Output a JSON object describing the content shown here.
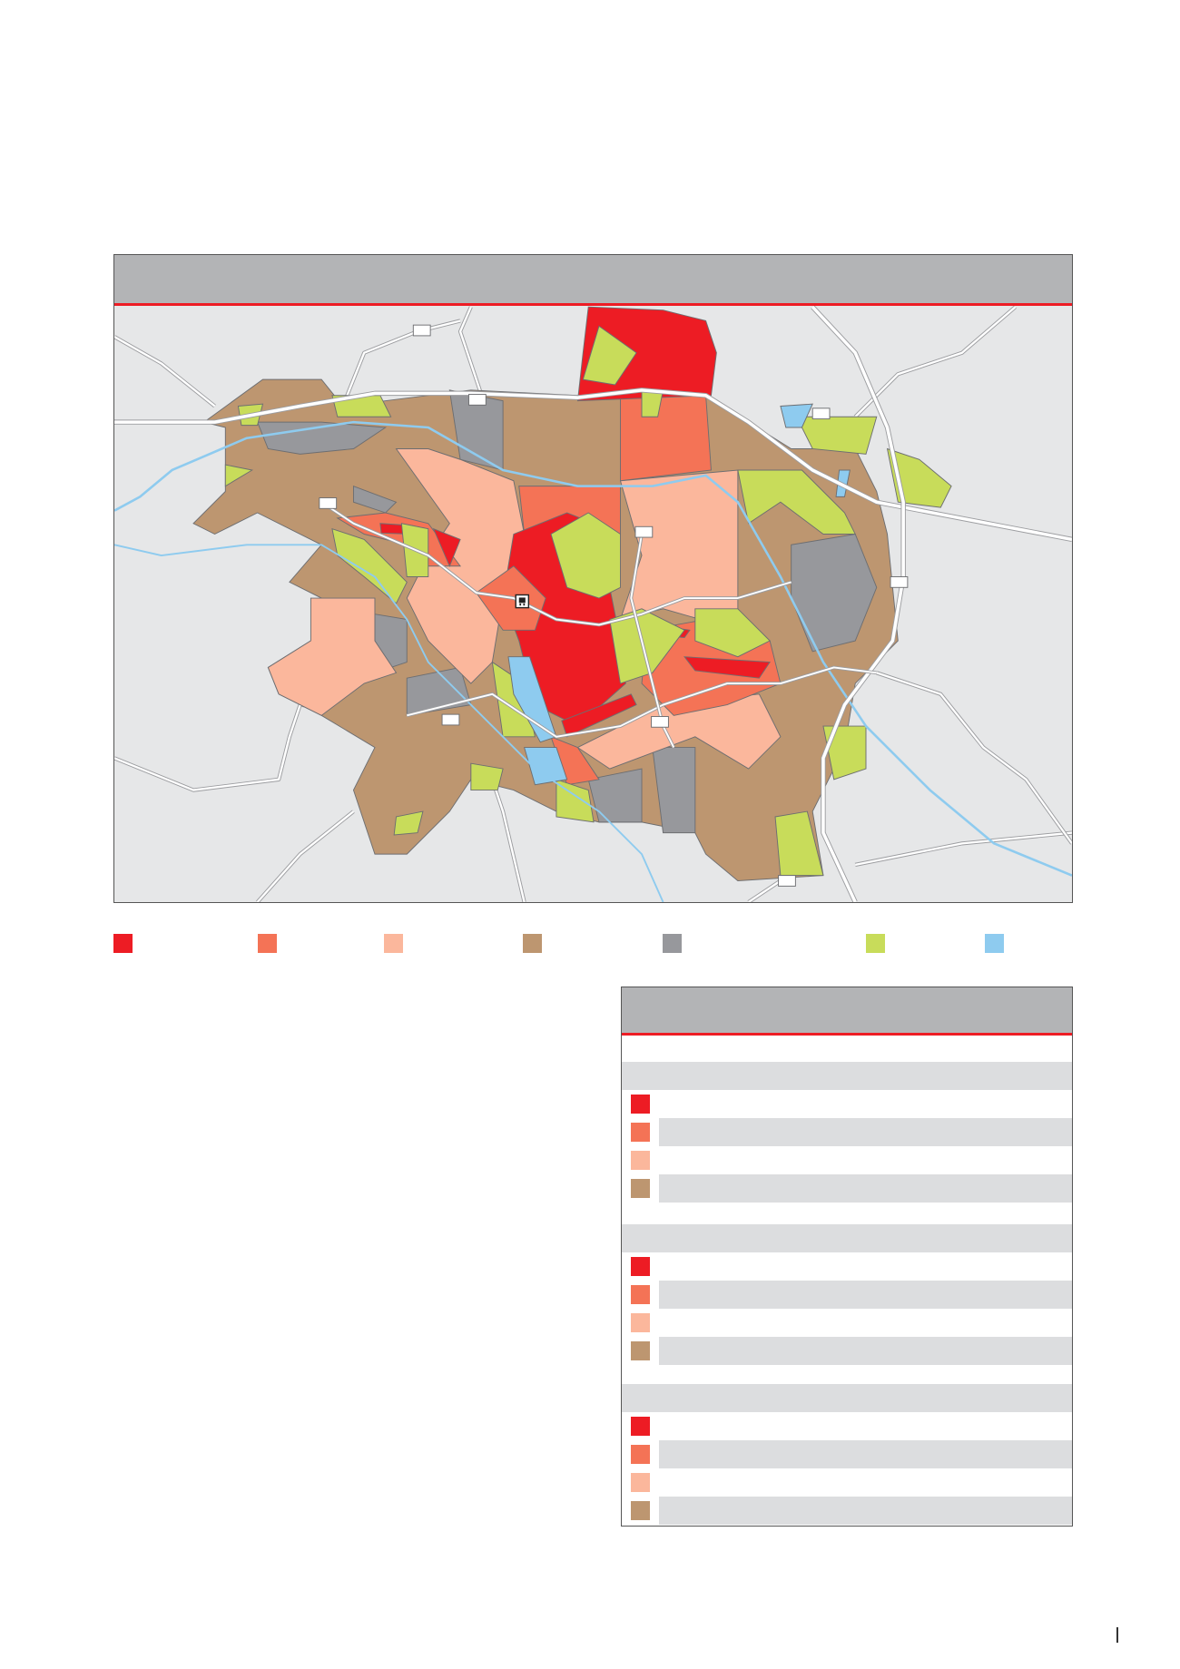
{
  "colors": {
    "map_background": "#e6e7e8",
    "header_gray": "#b3b4b6",
    "accent_red": "#ed1c24",
    "row_stripe": "#dcdddf",
    "water": "#8ecbef",
    "road": "#ffffff"
  },
  "map": {
    "station_icon": "train-station-icon",
    "road_shield_icon": "road-number-shield-icon"
  },
  "legend": {
    "items": [
      {
        "color": "#ed1c24"
      },
      {
        "color": "#f47356"
      },
      {
        "color": "#fbb79c"
      },
      {
        "color": "#bd9670"
      },
      {
        "color": "#97989c"
      },
      {
        "color": "#c8dc5a"
      },
      {
        "color": "#8ecbef"
      }
    ]
  },
  "table": {
    "sections": [
      {
        "rows": [
          {
            "color": "#ed1c24"
          },
          {
            "color": "#f47356"
          },
          {
            "color": "#fbb79c"
          },
          {
            "color": "#bd9670"
          }
        ]
      },
      {
        "rows": [
          {
            "color": "#ed1c24"
          },
          {
            "color": "#f47356"
          },
          {
            "color": "#fbb79c"
          },
          {
            "color": "#bd9670"
          }
        ]
      },
      {
        "rows": [
          {
            "color": "#ed1c24"
          },
          {
            "color": "#f47356"
          },
          {
            "color": "#fbb79c"
          },
          {
            "color": "#bd9670"
          }
        ]
      }
    ]
  }
}
